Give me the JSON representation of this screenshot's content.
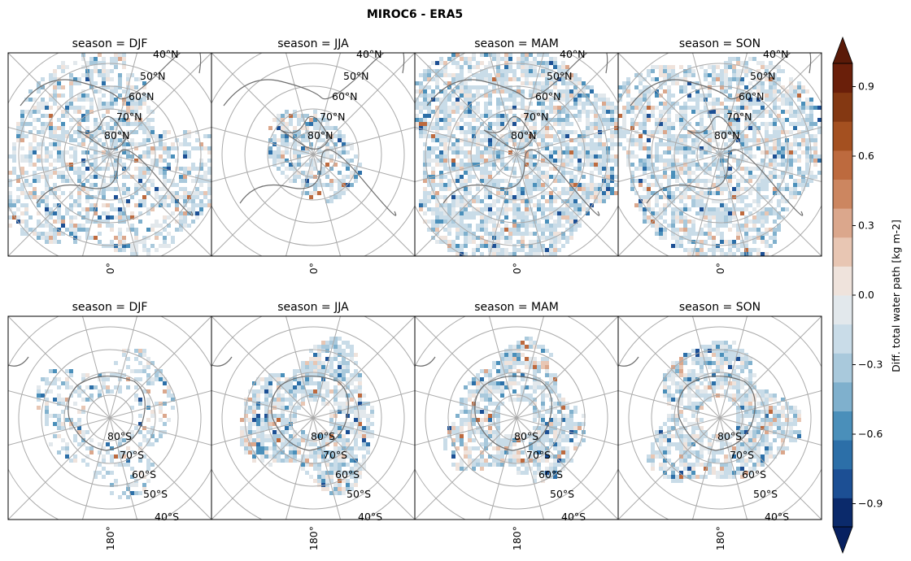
{
  "figure": {
    "title": "MIROC6 - ERA5",
    "colorbar_label": "Diff. total water path [kg m-2]",
    "colorbar_ticks": [
      0.9,
      0.6,
      0.3,
      0.0,
      -0.3,
      -0.6,
      -0.9
    ],
    "colorbar_tick_labels": [
      "0.9",
      "0.6",
      "0.3",
      "0.0",
      "−0.3",
      "−0.6",
      "−0.9"
    ],
    "colorbar_range": [
      -1.0,
      1.0
    ],
    "colorbar_extend": "both",
    "colormap": "blue-white-brown diverging",
    "colors": [
      "#0b2a6b",
      "#1c4f94",
      "#2c6fa8",
      "#4a8fba",
      "#7fb0cd",
      "#a9c9dc",
      "#c9dce8",
      "#e2e8ec",
      "#efe3dc",
      "#e8c6b3",
      "#dba78c",
      "#cc8660",
      "#bd6a3e",
      "#a45020",
      "#843812",
      "#6a1f0a"
    ]
  },
  "panels": [
    {
      "title": "season = DJF",
      "hemisphere": "north",
      "meridian_label": "0°",
      "lat_labels": [
        "40°N",
        "50°N",
        "60°N",
        "70°N",
        "80°N"
      ]
    },
    {
      "title": "season = JJA",
      "hemisphere": "north",
      "meridian_label": "0°",
      "lat_labels": [
        "40°N",
        "50°N",
        "60°N",
        "70°N",
        "80°N"
      ]
    },
    {
      "title": "season = MAM",
      "hemisphere": "north",
      "meridian_label": "0°",
      "lat_labels": [
        "40°N",
        "50°N",
        "60°N",
        "70°N",
        "80°N"
      ]
    },
    {
      "title": "season = SON",
      "hemisphere": "north",
      "meridian_label": "0°",
      "lat_labels": [
        "40°N",
        "50°N",
        "60°N",
        "70°N",
        "80°N"
      ]
    },
    {
      "title": "season = DJF",
      "hemisphere": "south",
      "meridian_label": "180°",
      "lat_labels": [
        "80°S",
        "70°S",
        "60°S",
        "50°S",
        "40°S"
      ]
    },
    {
      "title": "season = JJA",
      "hemisphere": "south",
      "meridian_label": "180°",
      "lat_labels": [
        "80°S",
        "70°S",
        "60°S",
        "50°S",
        "40°S"
      ]
    },
    {
      "title": "season = MAM",
      "hemisphere": "south",
      "meridian_label": "180°",
      "lat_labels": [
        "80°S",
        "70°S",
        "60°S",
        "50°S",
        "40°S"
      ]
    },
    {
      "title": "season = SON",
      "hemisphere": "south",
      "meridian_label": "180°",
      "lat_labels": [
        "80°S",
        "70°S",
        "60°S",
        "50°S",
        "40°S"
      ]
    }
  ]
}
